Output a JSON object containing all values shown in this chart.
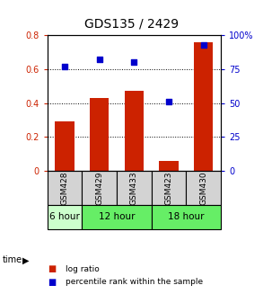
{
  "title": "GDS135 / 2429",
  "samples": [
    "GSM428",
    "GSM429",
    "GSM433",
    "GSM423",
    "GSM430"
  ],
  "log_ratio": [
    0.29,
    0.43,
    0.47,
    0.06,
    0.76
  ],
  "percentile_rank": [
    77,
    82,
    80,
    51,
    93
  ],
  "bar_color": "#cc2200",
  "dot_color": "#0000cc",
  "ylim_left": [
    0,
    0.8
  ],
  "ylim_right": [
    0,
    100
  ],
  "yticks_left": [
    0,
    0.2,
    0.4,
    0.6,
    0.8
  ],
  "yticks_right": [
    0,
    25,
    50,
    75,
    100
  ],
  "ytick_labels_left": [
    "0",
    "0.2",
    "0.4",
    "0.6",
    "0.8"
  ],
  "ytick_labels_right": [
    "0",
    "25",
    "50",
    "75",
    "100%"
  ],
  "time_groups": [
    {
      "label": "6 hour",
      "start": 0,
      "end": 1,
      "color": "#ccffcc"
    },
    {
      "label": "12 hour",
      "start": 1,
      "end": 3,
      "color": "#66ee66"
    },
    {
      "label": "18 hour",
      "start": 3,
      "end": 5,
      "color": "#66ee66"
    }
  ],
  "sample_bg": "#d3d3d3",
  "plot_bg": "#ffffff",
  "legend_lr_label": "log ratio",
  "legend_pr_label": "percentile rank within the sample"
}
